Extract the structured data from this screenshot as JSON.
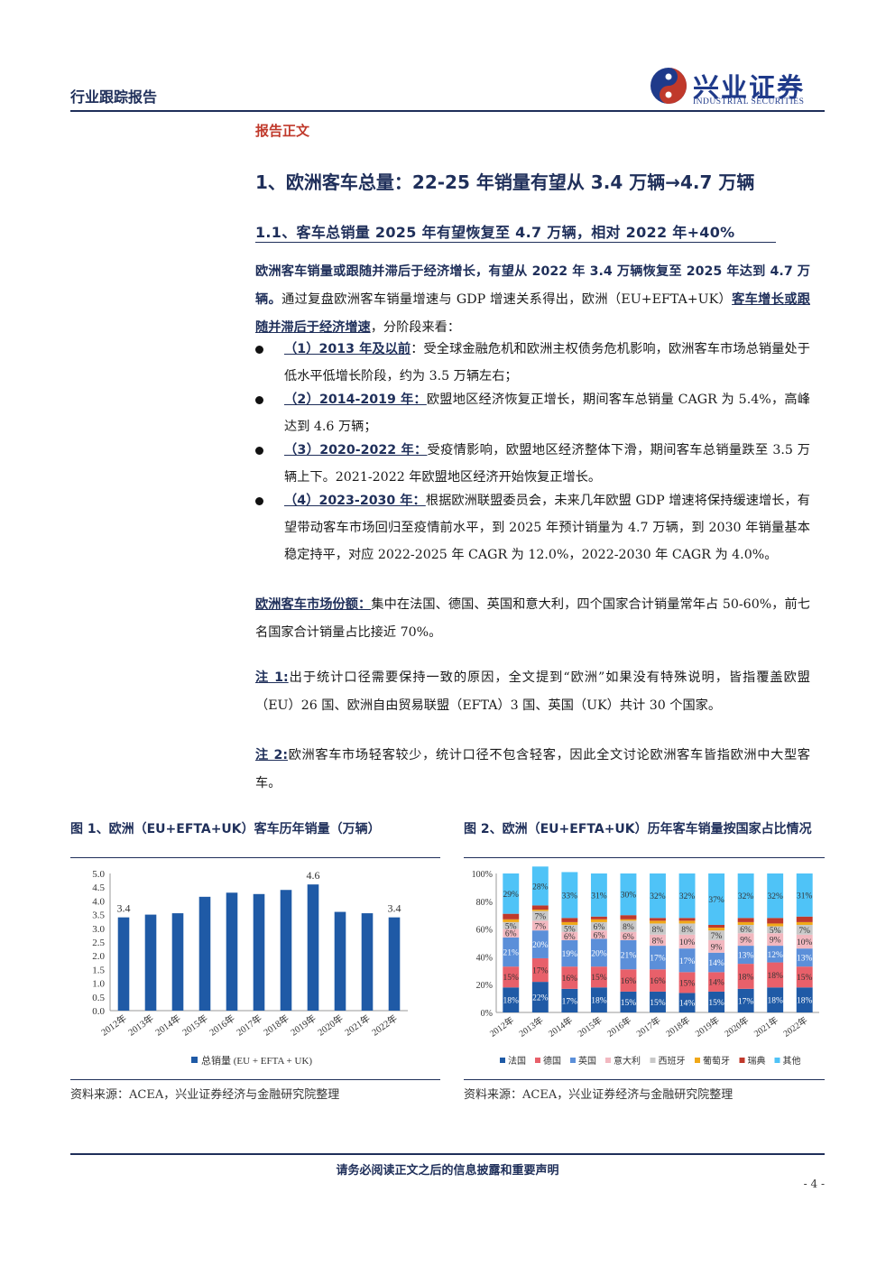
{
  "header": {
    "left": "行业跟踪报告",
    "logo_cn": "兴业证券",
    "logo_en": "INDUSTRIAL SECURITIES"
  },
  "section_label": "报告正文",
  "h1": "1、欧洲客车总量：22-25 年销量有望从 3.4 万辆→4.7 万辆",
  "h2": "1.1、客车总销量 2025 年有望恢复至 4.7 万辆，相对 2022 年+40%",
  "intro": {
    "bold": "欧洲客车销量或跟随并滞后于经济增长，有望从 2022 年 3.4 万辆恢复至 2025 年达到 4.7 万辆。",
    "text1": "通过复盘欧洲客车销量增速与 GDP 增速关系得出，欧洲（EU+EFTA+UK）",
    "underline": "客车增长或跟随并滞后于经济增速",
    "text2": "，分阶段来看："
  },
  "bullets": [
    {
      "label": "（1）2013 年及以前",
      "text": "：受全球金融危机和欧洲主权债务危机影响，欧洲客车市场总销量处于低水平低增长阶段，约为 3.5 万辆左右；"
    },
    {
      "label": "（2）2014-2019 年：",
      "text": "欧盟地区经济恢复正增长，期间客车总销量 CAGR 为 5.4%，高峰达到 4.6 万辆；"
    },
    {
      "label": "（3）2020-2022 年：",
      "text": "受疫情影响，欧盟地区经济整体下滑，期间客车总销量跌至 3.5 万辆上下。2021-2022 年欧盟地区经济开始恢复正增长。"
    },
    {
      "label": "（4）2023-2030 年：",
      "text": "根据欧洲联盟委员会，未来几年欧盟 GDP 增速将保持缓速增长，有望带动客车市场回归至疫情前水平，到 2025 年预计销量为 4.7 万辆，到 2030 年销量基本稳定持平，对应 2022-2025 年 CAGR 为 12.0%，2022-2030 年 CAGR 为 4.0%。"
    }
  ],
  "share": {
    "label": "欧洲客车市场份额：",
    "text": "集中在法国、德国、英国和意大利，四个国家合计销量常年占 50-60%，前七名国家合计销量占比接近 70%。"
  },
  "notes": [
    {
      "label": "注 1:",
      "text": "出于统计口径需要保持一致的原因，全文提到“欧洲”如果没有特殊说明，皆指覆盖欧盟（EU）26 国、欧洲自由贸易联盟（EFTA）3 国、英国（UK）共计 30 个国家。"
    },
    {
      "label": "注 2:",
      "text": "欧洲客车市场轻客较少，统计口径不包含轻客，因此全文讨论欧洲客车皆指欧洲中大型客车。"
    }
  ],
  "fig1": {
    "title": "图 1、欧洲（EU+EFTA+UK）客车历年销量（万辆）",
    "source": "资料来源：ACEA，兴业证券经济与金融研究院整理"
  },
  "fig2": {
    "title": "图 2、欧洲（EU+EFTA+UK）历年客车销量按国家占比情况",
    "source": "资料来源：ACEA，兴业证券经济与金融研究院整理"
  },
  "chart_data": [
    {
      "type": "bar",
      "categories": [
        "2012年",
        "2013年",
        "2014年",
        "2015年",
        "2016年",
        "2017年",
        "2018年",
        "2019年",
        "2020年",
        "2021年",
        "2022年"
      ],
      "series": [
        {
          "name": "总销量 (EU + EFTA + UK)",
          "values": [
            3.4,
            3.5,
            3.55,
            4.15,
            4.3,
            4.25,
            4.4,
            4.6,
            3.6,
            3.55,
            3.4
          ]
        }
      ],
      "data_labels": {
        "0": "3.4",
        "7": "4.6",
        "10": "3.4"
      },
      "yticks": [
        "0.0",
        "0.5",
        "1.0",
        "1.5",
        "2.0",
        "2.5",
        "3.0",
        "3.5",
        "4.0",
        "4.5",
        "5.0"
      ],
      "ylim": [
        0,
        5.0
      ],
      "legend": "bottom",
      "color": "#1f5aa6"
    },
    {
      "type": "bar",
      "stacked": true,
      "categories": [
        "2012年",
        "2013年",
        "2014年",
        "2015年",
        "2016年",
        "2017年",
        "2018年",
        "2019年",
        "2020年",
        "2021年",
        "2022年"
      ],
      "yticks": [
        "0%",
        "20%",
        "40%",
        "60%",
        "80%",
        "100%"
      ],
      "ylim": [
        0,
        100
      ],
      "legend": "bottom",
      "series": [
        {
          "name": "法国",
          "color": "#1f5aa6",
          "values": [
            18,
            22,
            17,
            18,
            15,
            15,
            14,
            15,
            17,
            18,
            18
          ]
        },
        {
          "name": "德国",
          "color": "#e8606a",
          "values": [
            15,
            17,
            16,
            15,
            16,
            16,
            15,
            14,
            18,
            18,
            15
          ]
        },
        {
          "name": "英国",
          "color": "#5b8fd9",
          "values": [
            21,
            20,
            19,
            20,
            21,
            17,
            17,
            14,
            13,
            12,
            13
          ]
        },
        {
          "name": "意大利",
          "color": "#f2b8c0",
          "values": [
            6,
            7,
            6,
            6,
            6,
            8,
            10,
            9,
            9,
            9,
            10
          ]
        },
        {
          "name": "西班牙",
          "color": "#c8c8c8",
          "values": [
            5,
            7,
            5,
            6,
            8,
            8,
            8,
            7,
            6,
            5,
            7
          ]
        },
        {
          "name": "葡萄牙",
          "color": "#f0a818",
          "values": [
            2,
            1,
            2,
            2,
            1,
            2,
            2,
            2,
            2,
            2,
            2
          ]
        },
        {
          "name": "瑞典",
          "color": "#c0392b",
          "values": [
            4,
            3,
            3,
            2,
            3,
            2,
            2,
            2,
            3,
            4,
            4
          ]
        },
        {
          "name": "其他",
          "color": "#4fc3f7",
          "values": [
            29,
            28,
            33,
            31,
            30,
            32,
            32,
            37,
            32,
            32,
            31
          ]
        }
      ],
      "labels": {
        "法国": [
          "18%",
          "22%",
          "17%",
          "18%",
          "15%",
          "15%",
          "14%",
          "15%",
          "17%",
          "18%",
          "18%"
        ],
        "德国": [
          "15%",
          "17%",
          "16%",
          "15%",
          "16%",
          "16%",
          "15%",
          "14%",
          "18%",
          "18%",
          "15%"
        ],
        "英国": [
          "21%",
          "20%",
          "19%",
          "20%",
          "21%",
          "17%",
          "17%",
          "14%",
          "13%",
          "12%",
          "13%"
        ],
        "意大利": [
          "6%",
          "7%",
          "6%",
          "6%",
          "6%",
          "8%",
          "10%",
          "9%",
          "9%",
          "9%",
          "10%"
        ],
        "西班牙": [
          "5%",
          "7%",
          "5%",
          "6%",
          "8%",
          "8%",
          "8%",
          "7%",
          "6%",
          "5%",
          "7%"
        ],
        "其他": [
          "29%",
          "28%",
          "33%",
          "31%",
          "30%",
          "32%",
          "32%",
          "37%",
          "32%",
          "32%",
          "31%"
        ]
      }
    }
  ],
  "footer": "请务必阅读正文之后的信息披露和重要声明",
  "page_number": "- 4 -"
}
